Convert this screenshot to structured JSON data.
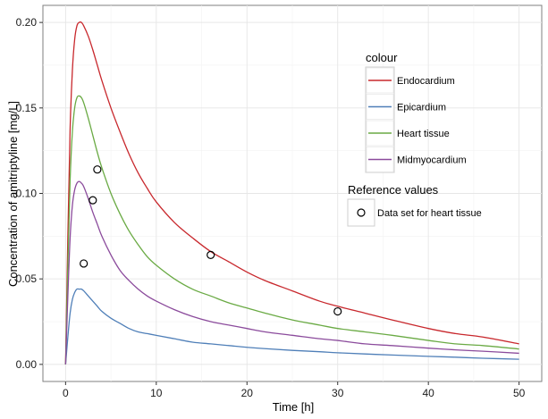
{
  "chart_data": {
    "type": "line",
    "xlabel": "Time [h]",
    "ylabel": "Concentration of amitriptyline [mg/L]",
    "xlim": [
      -2.5,
      52.5
    ],
    "ylim": [
      -0.01,
      0.21
    ],
    "x_ticks": [
      0,
      10,
      20,
      30,
      40,
      50
    ],
    "x_tick_labels": [
      "0",
      "10",
      "20",
      "30",
      "40",
      "50"
    ],
    "y_ticks": [
      0.0,
      0.05,
      0.1,
      0.15,
      0.2
    ],
    "y_tick_labels": [
      "0.00",
      "0.05",
      "0.10",
      "0.15",
      "0.20"
    ],
    "grid": true,
    "legend_placement": "top-right",
    "legend_colour": {
      "title": "colour",
      "entries": [
        {
          "name": "Endocardium",
          "color": "#c8282d"
        },
        {
          "name": "Epicardium",
          "color": "#4f7fb8"
        },
        {
          "name": "Heart tissue",
          "color": "#6aaa44"
        },
        {
          "name": "Midmyocardium",
          "color": "#8b4b9c"
        }
      ]
    },
    "legend_reference": {
      "title": "Reference values",
      "entries": [
        {
          "name": "Data set for heart tissue",
          "marker": "open-circle"
        }
      ]
    },
    "series": [
      {
        "name": "Endocardium",
        "color": "#c8282d",
        "x": [
          0,
          0.25,
          0.5,
          0.75,
          1,
          1.25,
          1.5,
          1.75,
          2,
          2.5,
          3,
          3.5,
          4,
          5,
          6,
          7,
          8,
          9,
          10,
          12,
          14,
          16,
          18,
          20,
          22,
          25,
          28,
          30,
          33,
          36,
          40,
          43,
          46,
          50
        ],
        "y": [
          0.0,
          0.075,
          0.138,
          0.172,
          0.19,
          0.198,
          0.2,
          0.2,
          0.198,
          0.192,
          0.184,
          0.175,
          0.166,
          0.15,
          0.136,
          0.123,
          0.112,
          0.103,
          0.095,
          0.083,
          0.074,
          0.066,
          0.06,
          0.054,
          0.049,
          0.043,
          0.037,
          0.034,
          0.03,
          0.026,
          0.021,
          0.018,
          0.016,
          0.012
        ]
      },
      {
        "name": "Epicardium",
        "color": "#4f7fb8",
        "x": [
          0,
          0.25,
          0.5,
          0.75,
          1,
          1.25,
          1.5,
          1.75,
          2,
          2.5,
          3,
          3.5,
          4,
          5,
          6,
          7,
          8,
          9,
          10,
          12,
          14,
          16,
          18,
          20,
          22,
          25,
          28,
          30,
          33,
          36,
          40,
          43,
          46,
          50
        ],
        "y": [
          0.0,
          0.016,
          0.03,
          0.038,
          0.042,
          0.044,
          0.044,
          0.044,
          0.043,
          0.04,
          0.037,
          0.034,
          0.031,
          0.027,
          0.024,
          0.021,
          0.019,
          0.018,
          0.017,
          0.015,
          0.013,
          0.012,
          0.011,
          0.01,
          0.0092,
          0.0082,
          0.0074,
          0.0068,
          0.0061,
          0.0055,
          0.0047,
          0.0042,
          0.0036,
          0.003
        ]
      },
      {
        "name": "Heart tissue",
        "color": "#6aaa44",
        "x": [
          0,
          0.25,
          0.5,
          0.75,
          1,
          1.25,
          1.5,
          1.75,
          2,
          2.5,
          3,
          3.5,
          4,
          5,
          6,
          7,
          8,
          9,
          10,
          12,
          14,
          16,
          18,
          20,
          22,
          25,
          28,
          30,
          33,
          36,
          40,
          43,
          46,
          50
        ],
        "y": [
          0.0,
          0.058,
          0.108,
          0.136,
          0.15,
          0.156,
          0.157,
          0.156,
          0.153,
          0.144,
          0.134,
          0.124,
          0.115,
          0.1,
          0.088,
          0.078,
          0.07,
          0.063,
          0.058,
          0.05,
          0.044,
          0.04,
          0.036,
          0.033,
          0.03,
          0.026,
          0.023,
          0.021,
          0.019,
          0.017,
          0.014,
          0.012,
          0.011,
          0.009
        ]
      },
      {
        "name": "Midmyocardium",
        "color": "#8b4b9c",
        "x": [
          0,
          0.25,
          0.5,
          0.75,
          1,
          1.25,
          1.5,
          1.75,
          2,
          2.5,
          3,
          3.5,
          4,
          5,
          6,
          7,
          8,
          9,
          10,
          12,
          14,
          16,
          18,
          20,
          22,
          25,
          28,
          30,
          33,
          36,
          40,
          43,
          46,
          50
        ],
        "y": [
          0.0,
          0.04,
          0.074,
          0.093,
          0.102,
          0.106,
          0.107,
          0.106,
          0.104,
          0.097,
          0.089,
          0.082,
          0.075,
          0.064,
          0.055,
          0.049,
          0.044,
          0.04,
          0.037,
          0.032,
          0.028,
          0.025,
          0.023,
          0.021,
          0.019,
          0.017,
          0.015,
          0.014,
          0.012,
          0.011,
          0.0095,
          0.0085,
          0.0077,
          0.0065
        ]
      }
    ],
    "reference_points": {
      "name": "Data set for heart tissue",
      "x": [
        2,
        3,
        3.5,
        16,
        30
      ],
      "y": [
        0.059,
        0.096,
        0.114,
        0.064,
        0.031
      ]
    }
  }
}
